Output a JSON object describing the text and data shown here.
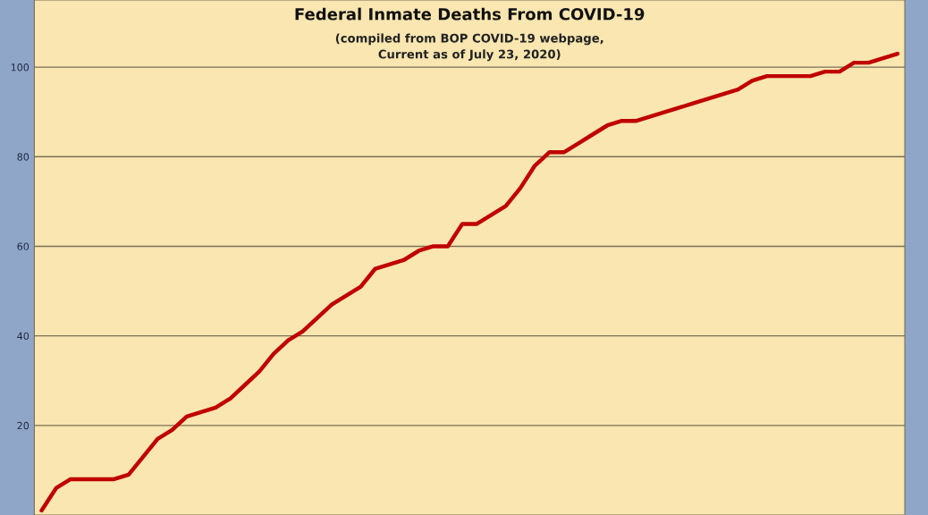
{
  "chart_data": {
    "type": "line",
    "title": "Federal Inmate Deaths From COVID-19",
    "subtitle": "(compiled from BOP COVID-19 webpage,\nCurrent as of July 23, 2020)",
    "categories": [
      null,
      null,
      null,
      null,
      null,
      null,
      null,
      null,
      null,
      null,
      null,
      null,
      null,
      null,
      null,
      null,
      null,
      null,
      null,
      null,
      null,
      null,
      null,
      null,
      null,
      null,
      null,
      null,
      null,
      null,
      null,
      null,
      null,
      null,
      null,
      null,
      null,
      null,
      null,
      null,
      null,
      null,
      null,
      null,
      null,
      null,
      null,
      null,
      null,
      null,
      null,
      null,
      null,
      null,
      null,
      null,
      null,
      null,
      null,
      null
    ],
    "series": [
      {
        "color": "#c00000",
        "values": [
          1,
          6,
          8,
          8,
          8,
          8,
          9,
          13,
          17,
          19,
          22,
          23,
          24,
          26,
          29,
          32,
          36,
          39,
          41,
          44,
          47,
          49,
          51,
          55,
          56,
          57,
          59,
          60,
          60,
          65,
          65,
          67,
          69,
          73,
          78,
          81,
          81,
          83,
          85,
          87,
          88,
          88,
          89,
          90,
          91,
          92,
          93,
          94,
          95,
          97,
          98,
          98,
          98,
          98,
          99,
          99,
          101,
          101,
          102,
          103
        ]
      }
    ],
    "ylim": [
      0,
      115
    ],
    "yticks": [
      20,
      40,
      60,
      80,
      100
    ],
    "grid": "y"
  }
}
